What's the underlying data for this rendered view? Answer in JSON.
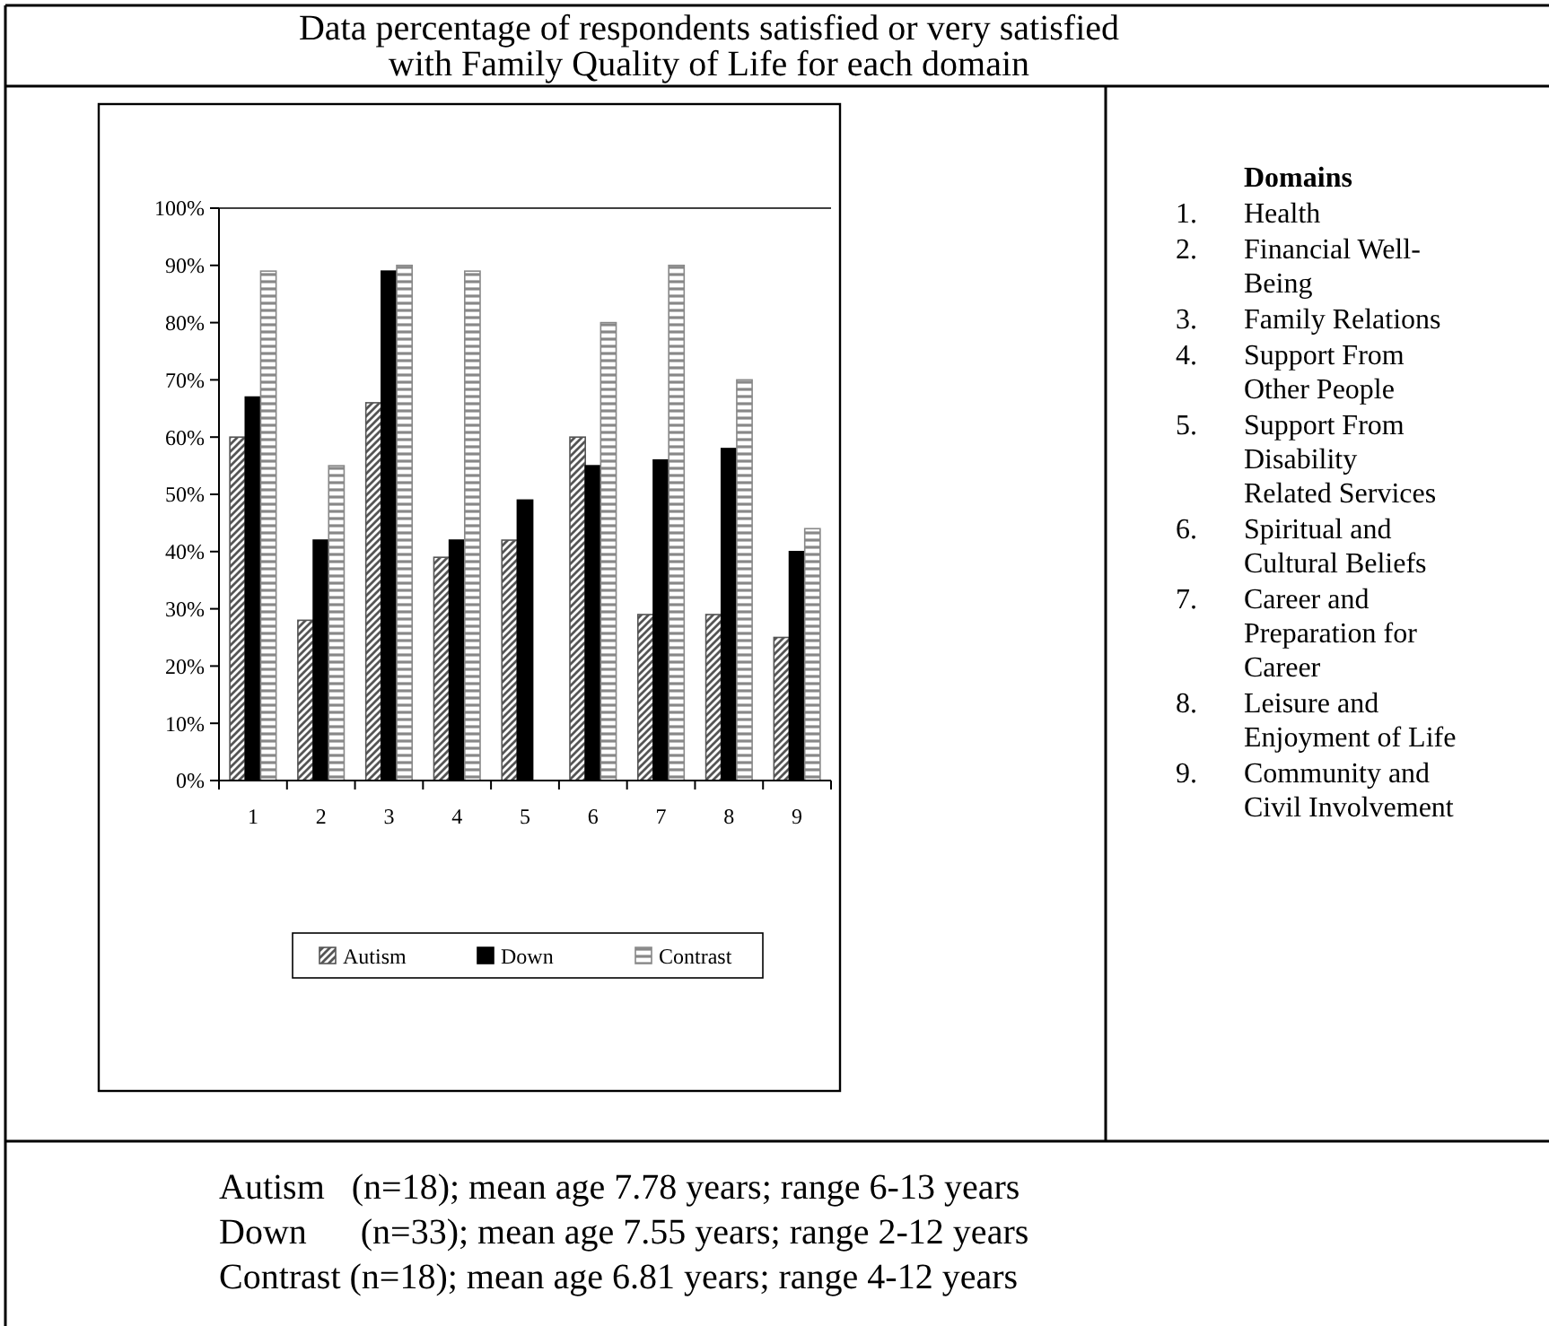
{
  "chart_data": {
    "type": "bar",
    "title": "Data percentage of respondents satisfied or very satisfied with Family Quality of Life for each domain",
    "categories": [
      "1",
      "2",
      "3",
      "4",
      "5",
      "6",
      "7",
      "8",
      "9"
    ],
    "series": [
      {
        "name": "Autism",
        "color": "#555555",
        "values": [
          60,
          28,
          66,
          39,
          42,
          60,
          29,
          29,
          25
        ]
      },
      {
        "name": "Down",
        "color": "#000000",
        "values": [
          67,
          42,
          89,
          42,
          49,
          55,
          56,
          58,
          40
        ]
      },
      {
        "name": "Contrast",
        "color": "#888888",
        "values": [
          89,
          55,
          90,
          89,
          null,
          80,
          90,
          70,
          44
        ]
      }
    ],
    "ylim": [
      0,
      100
    ],
    "yticks": [
      {
        "value": 0,
        "label": "0%"
      },
      {
        "value": 10,
        "label": "10%"
      },
      {
        "value": 20,
        "label": "20%"
      },
      {
        "value": 30,
        "label": "30%"
      },
      {
        "value": 40,
        "label": "40%"
      },
      {
        "value": 50,
        "label": "50%"
      },
      {
        "value": 60,
        "label": "60%"
      },
      {
        "value": 70,
        "label": "70%"
      },
      {
        "value": 80,
        "label": "80%"
      },
      {
        "value": 90,
        "label": "90%"
      },
      {
        "value": 100,
        "label": "100%"
      }
    ],
    "legend": "bottom",
    "annotations": [
      "Domains",
      "1. Health",
      "2. Financial Well-Being",
      "3. Family Relations",
      "4. Support From Other People",
      "5. Support From Disability Related Services",
      "6. Spiritual and Cultural Beliefs",
      "7. Career and Preparation for Career",
      "8. Leisure and Enjoyment of Life",
      "9. Community and Civil Involvement",
      "Autism   (n=18); mean age 7.78 years; range 6-13 years",
      "Down      (n=33); mean age 7.55 years; range 2-12 years",
      "Contrast (n=18); mean age 6.81 years; range 4-12 years"
    ]
  }
}
